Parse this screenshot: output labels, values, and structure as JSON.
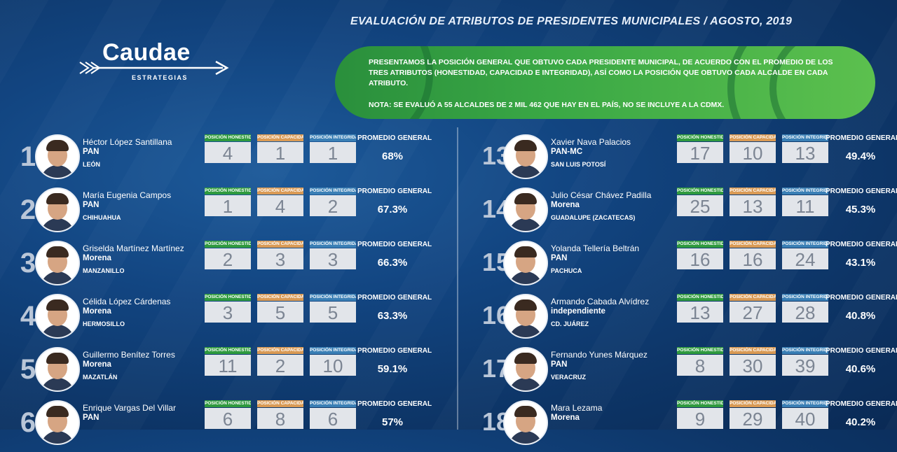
{
  "title": "EVALUACIÓN DE ATRIBUTOS DE PRESIDENTES MUNICIPALES / AGOSTO, 2019",
  "logo": {
    "name": "Caudae",
    "sub": "ESTRATEGIAS"
  },
  "banner": {
    "text": "PRESENTAMOS LA POSICIÓN GENERAL QUE OBTUVO CADA PRESIDENTE MUNICIPAL, DE ACUERDO CON EL PROMEDIO DE LOS TRES ATRIBUTOS (HONESTIDAD, CAPACIDAD E INTEGRIDAD), ASÍ COMO LA POSICIÓN QUE OBTUVO CADA ALCALDE EN CADA ATRIBUTO.",
    "note": "NOTA: SE EVALUÓ A 55 ALCALDES DE 2 MIL 462 QUE HAY EN EL PAÍS, NO SE INCLUYE A LA CDMX."
  },
  "labels": {
    "honestidad": "POSICIÓN HONESTIDAD",
    "capacidad": "POSICIÓN CAPACIDAD",
    "integridad": "POSICIÓN INTEGRIDAD",
    "promedio": "PROMEDIO GENERAL"
  },
  "colors": {
    "honestidad": "#2f9a3e",
    "capacidad": "#d99a55",
    "integridad": "#3a7fb5",
    "banner": "#3aa845"
  },
  "left": [
    {
      "rank": "1",
      "name": "Héctor López Santillana",
      "party": "PAN",
      "city": "LEÓN",
      "h": "4",
      "c": "1",
      "i": "1",
      "prom": "68%"
    },
    {
      "rank": "2",
      "name": "María Eugenia Campos",
      "party": "PAN",
      "city": "CHIHUAHUA",
      "h": "1",
      "c": "4",
      "i": "2",
      "prom": "67.3%"
    },
    {
      "rank": "3",
      "name": "Griselda Martínez Martínez",
      "party": "Morena",
      "city": "MANZANILLO",
      "h": "2",
      "c": "3",
      "i": "3",
      "prom": "66.3%"
    },
    {
      "rank": "4",
      "name": "Célida López Cárdenas",
      "party": "Morena",
      "city": "HERMOSILLO",
      "h": "3",
      "c": "5",
      "i": "5",
      "prom": "63.3%"
    },
    {
      "rank": "5",
      "name": "Guillermo Benítez Torres",
      "party": "Morena",
      "city": "MAZATLÁN",
      "h": "11",
      "c": "2",
      "i": "10",
      "prom": "59.1%"
    },
    {
      "rank": "6",
      "name": "Enrique Vargas Del Villar",
      "party": "PAN",
      "city": "",
      "h": "6",
      "c": "8",
      "i": "6",
      "prom": "57%"
    }
  ],
  "right": [
    {
      "rank": "13",
      "name": "Xavier Nava Palacios",
      "party": "PAN-MC",
      "city": "SAN LUIS POTOSÍ",
      "h": "17",
      "c": "10",
      "i": "13",
      "prom": "49.4%"
    },
    {
      "rank": "14",
      "name": "Julio César Chávez Padilla",
      "party": "Morena",
      "city": "GUADALUPE (ZACATECAS)",
      "h": "25",
      "c": "13",
      "i": "11",
      "prom": "45.3%"
    },
    {
      "rank": "15",
      "name": "Yolanda Tellería Beltrán",
      "party": "PAN",
      "city": "PACHUCA",
      "h": "16",
      "c": "16",
      "i": "24",
      "prom": "43.1%"
    },
    {
      "rank": "16",
      "name": "Armando Cabada Alvídrez",
      "party": "independiente",
      "city": "CD. JUÁREZ",
      "h": "13",
      "c": "27",
      "i": "28",
      "prom": "40.8%"
    },
    {
      "rank": "17",
      "name": "Fernando Yunes Márquez",
      "party": "PAN",
      "city": "VERACRUZ",
      "h": "8",
      "c": "30",
      "i": "39",
      "prom": "40.6%"
    },
    {
      "rank": "18",
      "name": "Mara Lezama",
      "party": "Morena",
      "city": "",
      "h": "9",
      "c": "29",
      "i": "40",
      "prom": "40.2%"
    }
  ]
}
